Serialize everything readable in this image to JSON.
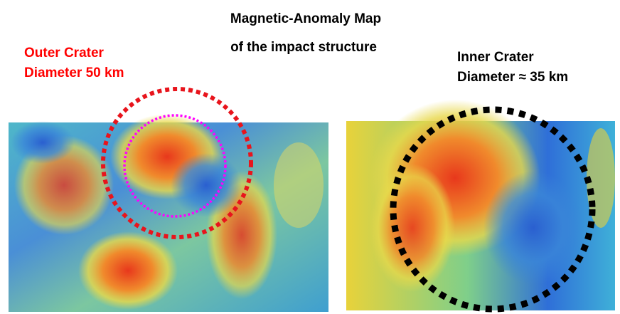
{
  "title": {
    "line1": "Magnetic-Anomaly Map",
    "line2": "of the impact structure"
  },
  "outer_crater": {
    "line1": "Outer Crater",
    "line2": "Diameter 50 km"
  },
  "inner_crater": {
    "line1": "Inner Crater",
    "line2": "Diameter ≈ 35 km"
  }
}
